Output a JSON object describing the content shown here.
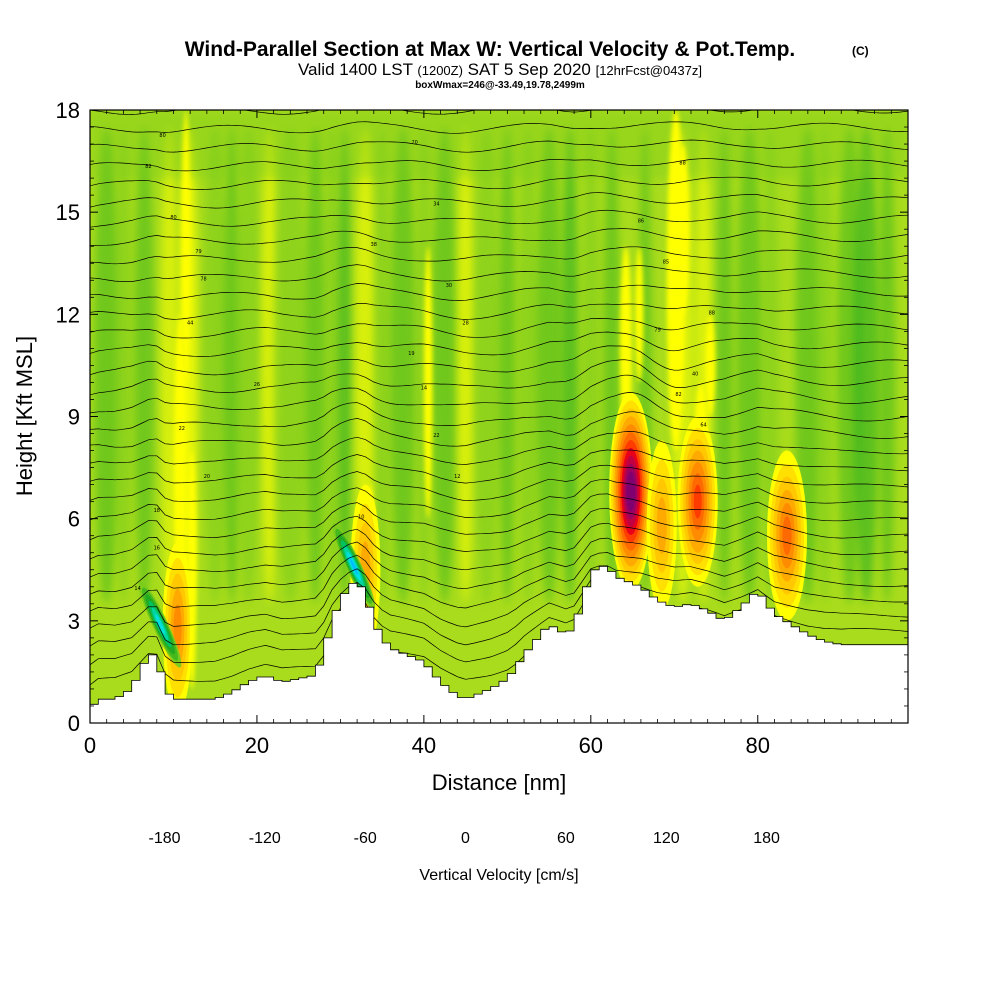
{
  "chart_data": {
    "type": "heatmap",
    "title": "Wind-Parallel Section at Max W: Vertical Velocity & Pot.Temp.",
    "copyright_mark": "(C)",
    "subtitle": {
      "valid": "Valid 1400 LST",
      "utc": "(1200Z)",
      "date": "SAT 5 Sep 2020",
      "forecast": "[12hrFcst@0437z]"
    },
    "box_label": "boxWmax=246@-33.49,19.78,2499m",
    "xlabel": "Distance [nm]",
    "ylabel": "Height [Kft MSL]",
    "xlim": [
      0,
      98
    ],
    "ylim": [
      0,
      18
    ],
    "x_ticks": [
      0,
      20,
      40,
      60,
      80
    ],
    "x_tick_labels": [
      "0",
      "20",
      "40",
      "60",
      "80"
    ],
    "y_ticks": [
      0,
      3,
      6,
      9,
      12,
      15,
      18
    ],
    "y_tick_labels": [
      "0",
      "3",
      "6",
      "9",
      "12",
      "15",
      "18"
    ],
    "colorbar": {
      "label": "Vertical Velocity [cm/s]",
      "min": -180,
      "step": 20,
      "colors": [
        "#0000ff",
        "#1a4dff",
        "#1e90ff",
        "#00bfff",
        "#00e0e0",
        "#00d4a0",
        "#00c060",
        "#22aa22",
        "#44b81c",
        "#7ccc1c",
        "#b4e01c",
        "#ffff00",
        "#ffe000",
        "#ffc800",
        "#ffaa00",
        "#ff8c00",
        "#ff6a00",
        "#ff3c00",
        "#e8001a",
        "#c00040",
        "#9c0060",
        "#800070"
      ],
      "tick_values": [
        -180,
        -120,
        -60,
        0,
        60,
        120,
        180
      ],
      "tick_labels": [
        "-180",
        "-120",
        "-60",
        "0",
        "60",
        "120",
        "180"
      ]
    },
    "terrain": [
      [
        0,
        0.4
      ],
      [
        1,
        0.7
      ],
      [
        3,
        0.7
      ],
      [
        5,
        1.0
      ],
      [
        6,
        1.5
      ],
      [
        7,
        2.0
      ],
      [
        8,
        2.0
      ],
      [
        9,
        1.0
      ],
      [
        10,
        0.7
      ],
      [
        15,
        0.7
      ],
      [
        17,
        0.9
      ],
      [
        19,
        1.2
      ],
      [
        21,
        1.4
      ],
      [
        23,
        1.2
      ],
      [
        25,
        1.3
      ],
      [
        27,
        1.4
      ],
      [
        28,
        2.0
      ],
      [
        29,
        3.0
      ],
      [
        30,
        3.6
      ],
      [
        31,
        4.0
      ],
      [
        32,
        4.2
      ],
      [
        33,
        3.8
      ],
      [
        34,
        3.0
      ],
      [
        35,
        2.5
      ],
      [
        36,
        2.2
      ],
      [
        38,
        2.0
      ],
      [
        40,
        1.8
      ],
      [
        41,
        1.5
      ],
      [
        42,
        1.2
      ],
      [
        43,
        1.0
      ],
      [
        44,
        0.8
      ],
      [
        45,
        0.7
      ],
      [
        46,
        0.8
      ],
      [
        48,
        1.0
      ],
      [
        50,
        1.3
      ],
      [
        51,
        1.6
      ],
      [
        52,
        2.0
      ],
      [
        53,
        2.3
      ],
      [
        54,
        2.6
      ],
      [
        55,
        2.9
      ],
      [
        57,
        2.6
      ],
      [
        58,
        2.8
      ],
      [
        59,
        3.6
      ],
      [
        60,
        4.4
      ],
      [
        61,
        4.6
      ],
      [
        62,
        4.6
      ],
      [
        63,
        4.3
      ],
      [
        64,
        4.2
      ],
      [
        65,
        4.1
      ],
      [
        66,
        4.0
      ],
      [
        67,
        3.8
      ],
      [
        68,
        3.6
      ],
      [
        70,
        3.4
      ],
      [
        72,
        3.5
      ],
      [
        74,
        3.3
      ],
      [
        76,
        3.0
      ],
      [
        78,
        3.4
      ],
      [
        80,
        3.9
      ],
      [
        82,
        3.2
      ],
      [
        84,
        2.9
      ],
      [
        86,
        2.6
      ],
      [
        88,
        2.4
      ],
      [
        90,
        2.3
      ],
      [
        95,
        2.3
      ],
      [
        98,
        2.3
      ]
    ],
    "updraft_cores": [
      {
        "x": 10.5,
        "y": 2.8,
        "w_max": 110
      },
      {
        "x": 33.0,
        "y": 4.5,
        "w_max": 90
      },
      {
        "x": 64.8,
        "y": 6.8,
        "w_max": 246
      },
      {
        "x": 68.5,
        "y": 5.8,
        "w_max": 80
      },
      {
        "x": 72.8,
        "y": 6.5,
        "w_max": 150
      },
      {
        "x": 83.5,
        "y": 5.5,
        "w_max": 130
      }
    ],
    "downdraft_cores": [
      {
        "x": 8.4,
        "y": 2.9,
        "w_min": -130
      },
      {
        "x": 31.6,
        "y": 4.6,
        "w_min": -150
      }
    ],
    "isentrope_labels": [
      {
        "x": 8.7,
        "y": 17.2,
        "text": "80"
      },
      {
        "x": 7.0,
        "y": 16.3,
        "text": "82"
      },
      {
        "x": 10.0,
        "y": 14.8,
        "text": "80"
      },
      {
        "x": 13.0,
        "y": 13.8,
        "text": "79"
      },
      {
        "x": 13.6,
        "y": 13.0,
        "text": "78"
      },
      {
        "x": 12.0,
        "y": 11.7,
        "text": "44"
      },
      {
        "x": 20.0,
        "y": 9.9,
        "text": "26"
      },
      {
        "x": 11.0,
        "y": 8.6,
        "text": "22"
      },
      {
        "x": 14.0,
        "y": 7.2,
        "text": "20"
      },
      {
        "x": 8.0,
        "y": 6.2,
        "text": "18"
      },
      {
        "x": 8.0,
        "y": 5.1,
        "text": "16"
      },
      {
        "x": 5.7,
        "y": 3.9,
        "text": "14"
      },
      {
        "x": 32.5,
        "y": 6.0,
        "text": "10"
      },
      {
        "x": 38.9,
        "y": 17.0,
        "text": "20"
      },
      {
        "x": 41.5,
        "y": 15.2,
        "text": "34"
      },
      {
        "x": 34.0,
        "y": 14.0,
        "text": "38"
      },
      {
        "x": 43.0,
        "y": 12.8,
        "text": "30"
      },
      {
        "x": 45.0,
        "y": 11.7,
        "text": "28"
      },
      {
        "x": 38.5,
        "y": 10.8,
        "text": "19"
      },
      {
        "x": 40.0,
        "y": 9.8,
        "text": "14"
      },
      {
        "x": 41.5,
        "y": 8.4,
        "text": "22"
      },
      {
        "x": 44.0,
        "y": 7.2,
        "text": "12"
      },
      {
        "x": 71.0,
        "y": 16.4,
        "text": "88"
      },
      {
        "x": 66.0,
        "y": 14.7,
        "text": "86"
      },
      {
        "x": 69.0,
        "y": 13.5,
        "text": "85"
      },
      {
        "x": 74.5,
        "y": 12.0,
        "text": "88"
      },
      {
        "x": 68.0,
        "y": 11.5,
        "text": "79"
      },
      {
        "x": 72.5,
        "y": 10.2,
        "text": "40"
      },
      {
        "x": 70.5,
        "y": 9.6,
        "text": "82"
      },
      {
        "x": 73.5,
        "y": 8.7,
        "text": "64"
      }
    ]
  }
}
